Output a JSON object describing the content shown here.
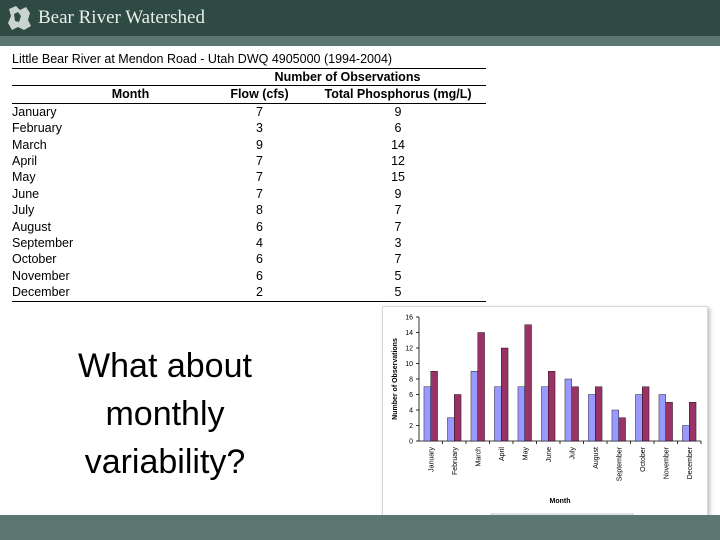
{
  "header": {
    "title": "Bear River Watershed"
  },
  "table": {
    "title": "Little Bear River at Mendon Road - Utah DWQ 4905000 (1994-2004)",
    "group_header": "Number of Observations",
    "columns": [
      "Month",
      "Flow (cfs)",
      "Total Phosphorus (mg/L)"
    ],
    "rows": [
      [
        "January",
        "7",
        "9"
      ],
      [
        "February",
        "3",
        "6"
      ],
      [
        "March",
        "9",
        "14"
      ],
      [
        "April",
        "7",
        "12"
      ],
      [
        "May",
        "7",
        "15"
      ],
      [
        "June",
        "7",
        "9"
      ],
      [
        "July",
        "8",
        "7"
      ],
      [
        "August",
        "6",
        "7"
      ],
      [
        "September",
        "4",
        "3"
      ],
      [
        "October",
        "6",
        "7"
      ],
      [
        "November",
        "6",
        "5"
      ],
      [
        "December",
        "2",
        "5"
      ]
    ]
  },
  "question": {
    "line1": "What about",
    "line2": "monthly",
    "line3": "variability?"
  },
  "colors": {
    "header_bg": "#2f4a43",
    "stripe": "#5c7771",
    "flow": "#9999ff",
    "phosphorus": "#993366"
  },
  "chart_data": {
    "type": "bar",
    "categories": [
      "January",
      "February",
      "March",
      "April",
      "May",
      "June",
      "July",
      "August",
      "September",
      "October",
      "November",
      "December"
    ],
    "series": [
      {
        "name": "Flow (cfs)",
        "values": [
          7,
          3,
          9,
          7,
          7,
          7,
          8,
          6,
          4,
          6,
          6,
          2
        ],
        "color": "#9999ff"
      },
      {
        "name": "Total Phosphorus",
        "values": [
          9,
          6,
          14,
          12,
          15,
          9,
          7,
          7,
          3,
          7,
          5,
          5
        ],
        "color": "#993366"
      }
    ],
    "xlabel": "Month",
    "ylabel": "Number of Observations",
    "ylim": [
      0,
      16
    ],
    "yticks": [
      0,
      2,
      4,
      6,
      8,
      10,
      12,
      14,
      16
    ],
    "legend_position": "bottom",
    "grid": false
  }
}
